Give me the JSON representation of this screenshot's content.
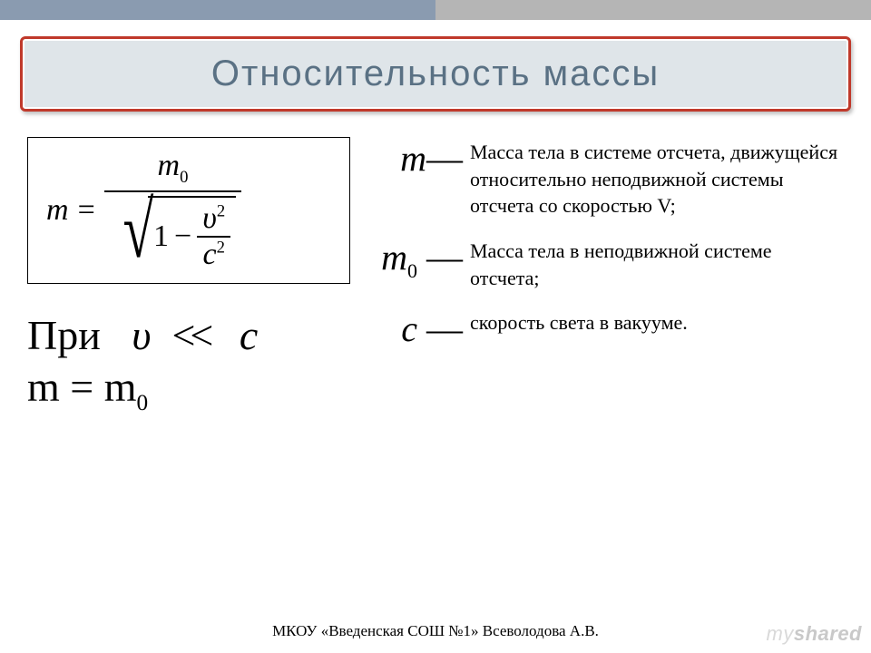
{
  "colors": {
    "accent_left": "#8a9bb0",
    "accent_right": "#b5b5b5",
    "title_border": "#c0392b",
    "title_bg": "#dfe5e9",
    "title_text": "#5a7184",
    "text": "#000000",
    "watermark": "#d9d9d9"
  },
  "title": "Относительность  массы",
  "formula": {
    "lhs": "m",
    "eq": "=",
    "numerator_var": "m",
    "numerator_sub": "0",
    "sqrt_one": "1",
    "sqrt_minus": "−",
    "inner_num_var": "υ",
    "inner_num_sup": "2",
    "inner_den_var": "c",
    "inner_den_sup": "2"
  },
  "condition": {
    "line1_label": "При",
    "line1_var": "υ",
    "line1_rel": "<<",
    "line1_rhs": "c",
    "line2": "m = m",
    "line2_sub": "0"
  },
  "definitions": [
    {
      "symbol": "m",
      "sub": "",
      "dash": "—",
      "text": "Масса  тела  в  системе  отсчета, движущейся относительно неподвижной системы  отсчета  со скоростью V;"
    },
    {
      "symbol": "m",
      "sub": "0",
      "dash": "—",
      "text": "Масса  тела  в  неподвижной системе  отсчета;"
    },
    {
      "symbol": "c",
      "sub": "",
      "dash": "—",
      "text": "скорость  света  в  вакууме."
    }
  ],
  "footer": "МКОУ  «Введенская  СОШ  №1»  Всеволодова  А.В.",
  "watermark_prefix": "my",
  "watermark_suffix": "shared"
}
